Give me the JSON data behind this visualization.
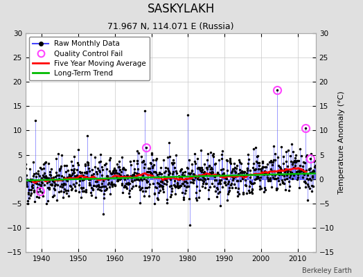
{
  "title": "SASKYLAKH",
  "subtitle": "71.967 N, 114.071 E (Russia)",
  "ylabel": "Temperature Anomaly (°C)",
  "credit": "Berkeley Earth",
  "year_start": 1935,
  "year_end": 2015,
  "ylim": [
    -15,
    30
  ],
  "yticks": [
    -15,
    -10,
    -5,
    0,
    5,
    10,
    15,
    20,
    25,
    30
  ],
  "xticks": [
    1940,
    1950,
    1960,
    1970,
    1980,
    1990,
    2000,
    2010
  ],
  "background_color": "#e0e0e0",
  "plot_bg_color": "#ffffff",
  "raw_line_color": "#4444ff",
  "raw_dot_color": "#000000",
  "moving_avg_color": "#ff0000",
  "trend_color": "#00bb00",
  "qc_fail_color": "#ff44ff",
  "trend_intercept": 0.45,
  "trend_slope": 0.018,
  "seed": 42
}
